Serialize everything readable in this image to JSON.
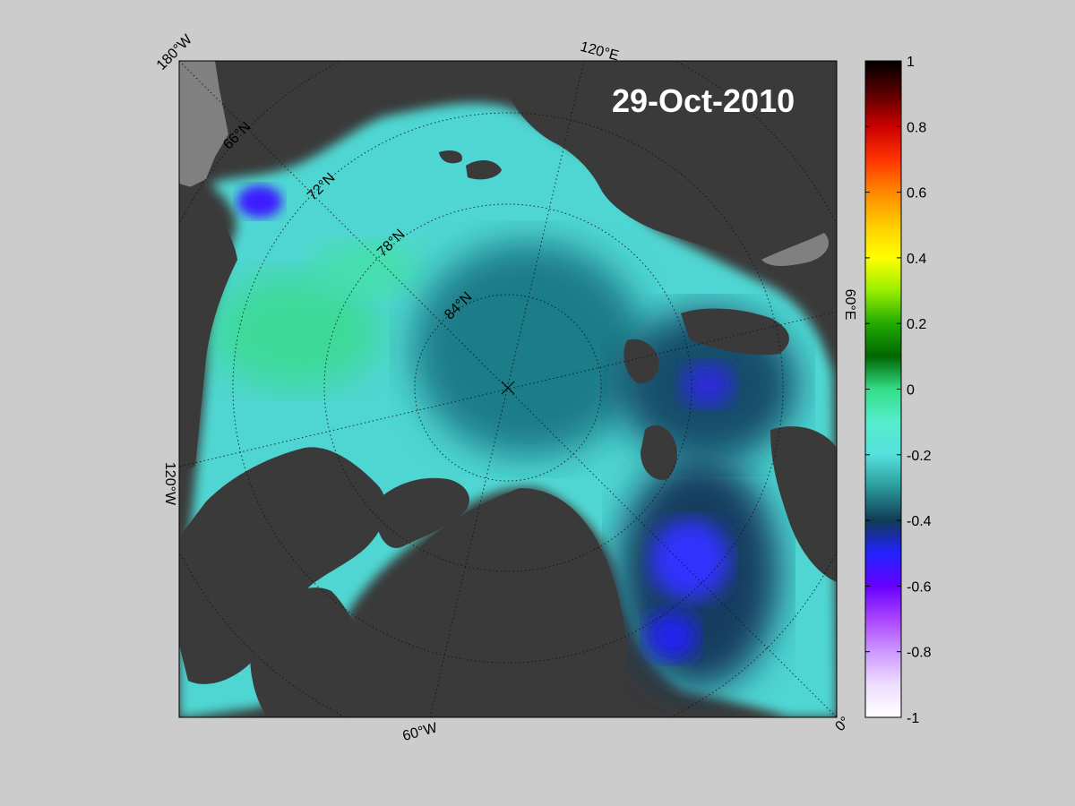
{
  "map": {
    "date": "29-Oct-2010",
    "longitude_labels": [
      "180°W",
      "120°E",
      "60°E",
      "0°",
      "60°W",
      "120°W"
    ],
    "latitude_labels": [
      "66°N",
      "72°N",
      "78°N",
      "84°N"
    ],
    "colors": {
      "land": "#3a3a3a",
      "no_data": "#808080",
      "background": "#cccccc"
    }
  },
  "colorbar": {
    "min": -1,
    "max": 1,
    "ticks": [
      "1",
      "0.8",
      "0.6",
      "0.4",
      "0.2",
      "0",
      "-0.2",
      "-0.4",
      "-0.6",
      "-0.8",
      "-1"
    ],
    "stops": [
      {
        "v": 1.0,
        "c": "#000000"
      },
      {
        "v": 0.9,
        "c": "#5a0000"
      },
      {
        "v": 0.8,
        "c": "#cc0000"
      },
      {
        "v": 0.7,
        "c": "#ff3300"
      },
      {
        "v": 0.6,
        "c": "#ff8800"
      },
      {
        "v": 0.5,
        "c": "#ffcc00"
      },
      {
        "v": 0.4,
        "c": "#ffff00"
      },
      {
        "v": 0.3,
        "c": "#99ee00"
      },
      {
        "v": 0.2,
        "c": "#22aa00"
      },
      {
        "v": 0.1,
        "c": "#006600"
      },
      {
        "v": 0.0,
        "c": "#33dd88"
      },
      {
        "v": -0.1,
        "c": "#55eecc"
      },
      {
        "v": -0.2,
        "c": "#55e0dd"
      },
      {
        "v": -0.3,
        "c": "#2a9999"
      },
      {
        "v": -0.4,
        "c": "#103a55"
      },
      {
        "v": -0.5,
        "c": "#2222ff"
      },
      {
        "v": -0.6,
        "c": "#6600ff"
      },
      {
        "v": -0.7,
        "c": "#aa44ff"
      },
      {
        "v": -0.8,
        "c": "#cc99ff"
      },
      {
        "v": -0.9,
        "c": "#eeddff"
      },
      {
        "v": -1.0,
        "c": "#ffffff"
      }
    ]
  }
}
